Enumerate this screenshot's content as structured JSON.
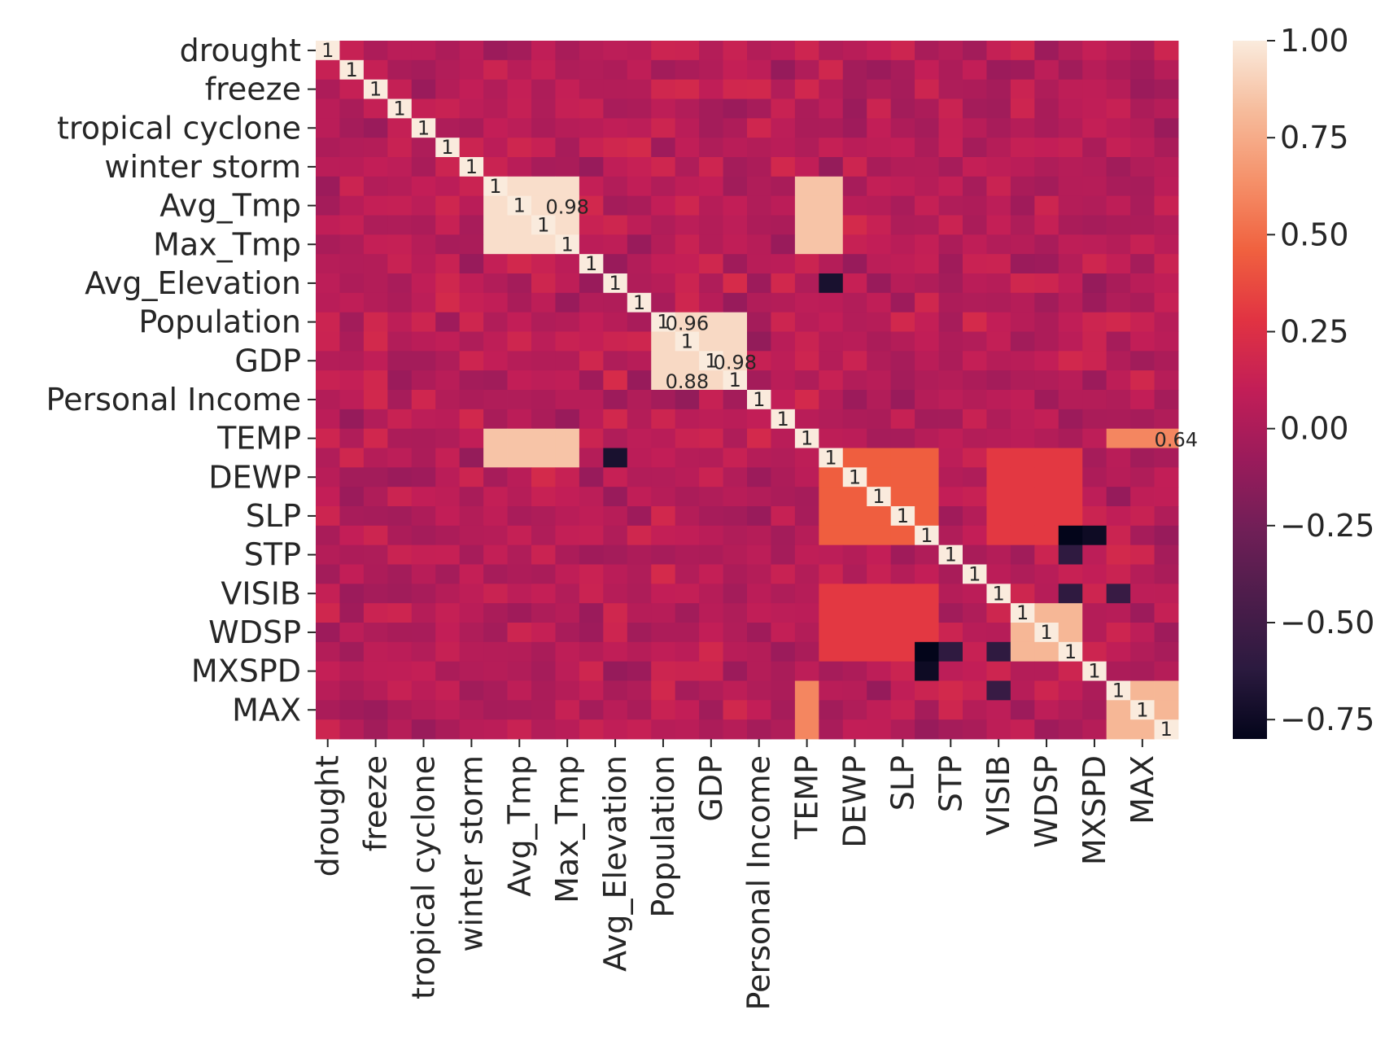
{
  "chart_data": {
    "type": "heatmap",
    "labeled_rows": [
      "drought",
      "freeze",
      "tropical cyclone",
      "winter storm",
      "Avg_Tmp",
      "Max_Tmp",
      "Avg_Elevation",
      "Population",
      "GDP",
      "Personal Income",
      "TEMP",
      "DEWP",
      "SLP",
      "STP",
      "VISIB",
      "WDSP",
      "MXSPD",
      "MAX"
    ],
    "labeled_cols": [
      "drought",
      "freeze",
      "tropical cyclone",
      "winter storm",
      "Avg_Tmp",
      "Max_Tmp",
      "Avg_Elevation",
      "Population",
      "GDP",
      "Personal Income",
      "TEMP",
      "DEWP",
      "SLP",
      "STP",
      "VISIB",
      "WDSP",
      "MXSPD",
      "MAX"
    ],
    "n_variables": 36,
    "label_every": 2,
    "annotated": true,
    "diagonal_value": 1,
    "value_range": [
      -0.8,
      1.0
    ],
    "colormap": "rocket",
    "colorbar_ticks": [
      "1.00",
      "0.75",
      "0.50",
      "0.25",
      "0.00",
      "−0.25",
      "−0.50",
      "−0.75"
    ],
    "colorbar_tick_values": [
      1.0,
      0.75,
      0.5,
      0.25,
      0.0,
      -0.25,
      -0.5,
      -0.75
    ],
    "visible_annotations": [
      {
        "text": "0.64",
        "row": 20,
        "col": 35
      },
      {
        "text": "0.98",
        "row": 8,
        "col": 10
      },
      {
        "text": "0.96",
        "row": 14,
        "col": 15
      },
      {
        "text": "0.98",
        "row": 16,
        "col": 17
      },
      {
        "text": "0.88",
        "row": 17,
        "col": 15
      }
    ],
    "strong_blocks": [
      {
        "rows": [
          7,
          10
        ],
        "cols": [
          7,
          10
        ],
        "value": 0.95
      },
      {
        "rows": [
          7,
          10
        ],
        "cols": [
          20,
          21
        ],
        "value": 0.85
      },
      {
        "rows": [
          20,
          21
        ],
        "cols": [
          7,
          10
        ],
        "value": 0.85
      },
      {
        "rows": [
          14,
          17
        ],
        "cols": [
          14,
          17
        ],
        "value": 0.93
      },
      {
        "rows": [
          21,
          25
        ],
        "cols": [
          21,
          25
        ],
        "value": 0.45
      },
      {
        "rows": [
          21,
          25
        ],
        "cols": [
          28,
          31
        ],
        "value": 0.3
      },
      {
        "rows": [
          28,
          31
        ],
        "cols": [
          21,
          25
        ],
        "value": 0.3
      },
      {
        "rows": [
          29,
          31
        ],
        "cols": [
          29,
          31
        ],
        "value": 0.8
      },
      {
        "rows": [
          33,
          35
        ],
        "cols": [
          33,
          35
        ],
        "value": 0.8
      },
      {
        "rows": [
          20,
          20
        ],
        "cols": [
          33,
          35
        ],
        "value": 0.6
      },
      {
        "rows": [
          33,
          35
        ],
        "cols": [
          20,
          20
        ],
        "value": 0.6
      }
    ],
    "negative_spots": [
      {
        "row": 25,
        "col": 31,
        "value": -0.8
      },
      {
        "row": 31,
        "col": 25,
        "value": -0.8
      },
      {
        "row": 32,
        "col": 25,
        "value": -0.75
      },
      {
        "row": 25,
        "col": 32,
        "value": -0.75
      },
      {
        "row": 21,
        "col": 12,
        "value": -0.7
      },
      {
        "row": 12,
        "col": 21,
        "value": -0.7
      },
      {
        "row": 28,
        "col": 31,
        "value": -0.6
      },
      {
        "row": 31,
        "col": 28,
        "value": -0.6
      },
      {
        "row": 26,
        "col": 31,
        "value": -0.6
      },
      {
        "row": 31,
        "col": 26,
        "value": -0.6
      },
      {
        "row": 33,
        "col": 28,
        "value": -0.55
      },
      {
        "row": 28,
        "col": 33,
        "value": -0.55
      }
    ]
  }
}
